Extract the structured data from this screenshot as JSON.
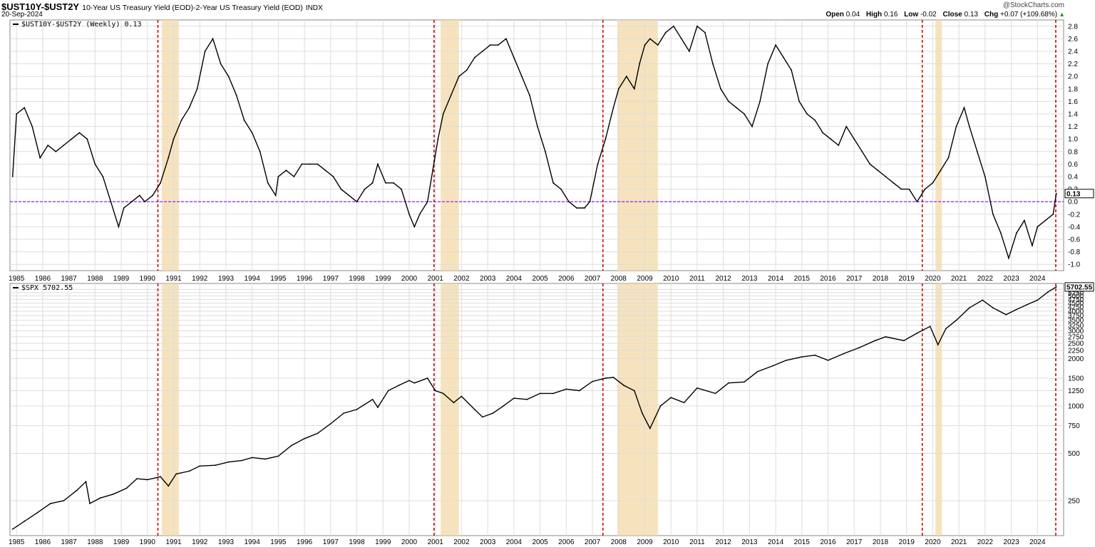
{
  "header": {
    "symbol": "$UST10Y-$UST2Y",
    "description": "10-Year US Treasury Yield (EOD)-2-Year US Treasury Yield (EOD)",
    "exchange": "INDX",
    "date": "20-Sep-2024",
    "brand": "@StockCharts.com",
    "open_label": "Open",
    "open_value": "0.04",
    "high_label": "High",
    "high_value": "0.16",
    "low_label": "Low",
    "low_value": "-0.02",
    "close_label": "Close",
    "close_value": "0.13",
    "chg_label": "Chg",
    "chg_value": "+0.07 (+109.68%)",
    "chg_arrow": "▲"
  },
  "colors": {
    "line": "#000000",
    "recession_shade": "#f3d9a7",
    "inversion_marker": "#cc0000",
    "zero_line": "#9933ff",
    "grid": "#dddddd",
    "up": "#2a9d2a"
  },
  "chart_data": [
    {
      "type": "line",
      "title": "$UST10Y-$UST2Y (Weekly) 0.13",
      "series": [
        {
          "name": "$UST10Y-$UST2Y",
          "x": [
            1984.85,
            1985.0,
            1985.3,
            1985.6,
            1985.9,
            1986.2,
            1986.5,
            1986.8,
            1987.1,
            1987.4,
            1987.7,
            1988.0,
            1988.3,
            1988.6,
            1988.9,
            1989.1,
            1989.4,
            1989.7,
            1989.9,
            1990.2,
            1990.5,
            1990.8,
            1991.0,
            1991.3,
            1991.6,
            1991.9,
            1992.2,
            1992.5,
            1992.8,
            1993.1,
            1993.4,
            1993.7,
            1994.0,
            1994.3,
            1994.6,
            1994.9,
            1995.0,
            1995.3,
            1995.6,
            1995.9,
            1996.2,
            1996.5,
            1996.8,
            1997.1,
            1997.4,
            1997.7,
            1998.0,
            1998.3,
            1998.6,
            1998.8,
            1999.1,
            1999.4,
            1999.7,
            2000.0,
            2000.2,
            2000.4,
            2000.7,
            2000.9,
            2001.1,
            2001.3,
            2001.6,
            2001.9,
            2002.2,
            2002.5,
            2002.8,
            2003.1,
            2003.4,
            2003.7,
            2004.0,
            2004.3,
            2004.6,
            2004.9,
            2005.2,
            2005.5,
            2005.8,
            2006.1,
            2006.4,
            2006.7,
            2006.9,
            2007.2,
            2007.5,
            2007.8,
            2008.0,
            2008.3,
            2008.6,
            2008.8,
            2009.0,
            2009.2,
            2009.5,
            2009.8,
            2010.1,
            2010.4,
            2010.7,
            2011.0,
            2011.3,
            2011.6,
            2011.9,
            2012.2,
            2012.5,
            2012.8,
            2013.1,
            2013.4,
            2013.7,
            2014.0,
            2014.3,
            2014.6,
            2014.9,
            2015.2,
            2015.5,
            2015.8,
            2016.1,
            2016.4,
            2016.7,
            2017.0,
            2017.3,
            2017.6,
            2017.9,
            2018.2,
            2018.5,
            2018.8,
            2019.1,
            2019.4,
            2019.7,
            2020.0,
            2020.3,
            2020.6,
            2020.9,
            2021.2,
            2021.4,
            2021.7,
            2022.0,
            2022.3,
            2022.6,
            2022.9,
            2023.2,
            2023.5,
            2023.8,
            2024.0,
            2024.3,
            2024.6,
            2024.72
          ],
          "values": [
            0.4,
            1.4,
            1.5,
            1.2,
            0.7,
            0.9,
            0.8,
            0.9,
            1.0,
            1.1,
            1.0,
            0.6,
            0.4,
            0.0,
            -0.4,
            -0.1,
            0.0,
            0.1,
            0.0,
            0.1,
            0.3,
            0.7,
            1.0,
            1.3,
            1.5,
            1.8,
            2.4,
            2.6,
            2.2,
            2.0,
            1.7,
            1.3,
            1.1,
            0.8,
            0.3,
            0.1,
            0.4,
            0.5,
            0.4,
            0.6,
            0.6,
            0.6,
            0.5,
            0.4,
            0.2,
            0.1,
            0.0,
            0.2,
            0.3,
            0.6,
            0.3,
            0.3,
            0.2,
            -0.2,
            -0.4,
            -0.2,
            0.0,
            0.5,
            1.0,
            1.4,
            1.7,
            2.0,
            2.1,
            2.3,
            2.4,
            2.5,
            2.5,
            2.6,
            2.3,
            2.0,
            1.7,
            1.2,
            0.8,
            0.3,
            0.2,
            0.0,
            -0.1,
            -0.1,
            0.0,
            0.6,
            1.0,
            1.5,
            1.8,
            2.0,
            1.8,
            2.2,
            2.5,
            2.6,
            2.5,
            2.7,
            2.8,
            2.6,
            2.4,
            2.8,
            2.7,
            2.2,
            1.8,
            1.6,
            1.5,
            1.4,
            1.2,
            1.6,
            2.2,
            2.5,
            2.3,
            2.1,
            1.6,
            1.4,
            1.3,
            1.1,
            1.0,
            0.9,
            1.2,
            1.0,
            0.8,
            0.6,
            0.5,
            0.4,
            0.3,
            0.2,
            0.2,
            0.0,
            0.2,
            0.3,
            0.5,
            0.7,
            1.2,
            1.5,
            1.2,
            0.8,
            0.4,
            -0.2,
            -0.5,
            -0.9,
            -0.5,
            -0.3,
            -0.7,
            -0.4,
            -0.3,
            -0.2,
            0.13
          ]
        }
      ],
      "ylim": [
        -1.1,
        2.9
      ],
      "yticks": [
        "2.8",
        "2.6",
        "2.4",
        "2.2",
        "2.0",
        "1.8",
        "1.6",
        "1.4",
        "1.2",
        "1.0",
        "0.8",
        "0.6",
        "0.4",
        "0.2",
        "0.0",
        "-0.2",
        "-0.4",
        "-0.6",
        "-0.8",
        "-1.0"
      ],
      "xticks": [
        "1985",
        "1986",
        "1987",
        "1988",
        "1989",
        "1990",
        "1991",
        "1992",
        "1993",
        "1994",
        "1995",
        "1996",
        "1997",
        "1998",
        "1999",
        "2000",
        "2001",
        "2002",
        "2003",
        "2004",
        "2005",
        "2006",
        "2007",
        "2008",
        "2009",
        "2010",
        "2011",
        "2012",
        "2013",
        "2014",
        "2015",
        "2016",
        "2017",
        "2018",
        "2019",
        "2020",
        "2021",
        "2022",
        "2023",
        "2024"
      ],
      "xlim": [
        1984.75,
        2025.0
      ],
      "reference_line": 0.0,
      "last_value_label": "0.13",
      "grid": true
    },
    {
      "type": "line",
      "title": "$SPX 5702.55",
      "log_scale": true,
      "series": [
        {
          "name": "$SPX",
          "x": [
            1984.85,
            1985.3,
            1985.8,
            1986.3,
            1986.8,
            1987.3,
            1987.65,
            1987.8,
            1988.2,
            1988.7,
            1989.2,
            1989.6,
            1990.0,
            1990.5,
            1990.8,
            1991.1,
            1991.6,
            1992.0,
            1992.6,
            1993.1,
            1993.6,
            1994.0,
            1994.5,
            1995.0,
            1995.5,
            1996.0,
            1996.5,
            1997.0,
            1997.5,
            1998.0,
            1998.6,
            1998.8,
            1999.2,
            1999.6,
            2000.0,
            2000.2,
            2000.7,
            2001.0,
            2001.3,
            2001.7,
            2002.0,
            2002.5,
            2002.8,
            2003.2,
            2003.6,
            2004.0,
            2004.5,
            2005.0,
            2005.5,
            2006.0,
            2006.5,
            2007.0,
            2007.5,
            2007.8,
            2008.2,
            2008.6,
            2008.9,
            2009.2,
            2009.6,
            2010.0,
            2010.5,
            2011.0,
            2011.7,
            2012.2,
            2012.8,
            2013.3,
            2013.9,
            2014.4,
            2015.0,
            2015.5,
            2016.0,
            2016.6,
            2017.2,
            2017.8,
            2018.2,
            2018.9,
            2019.4,
            2019.9,
            2020.2,
            2020.5,
            2020.9,
            2021.4,
            2021.9,
            2022.3,
            2022.8,
            2023.2,
            2023.6,
            2024.0,
            2024.4,
            2024.72
          ],
          "values": [
            165,
            185,
            210,
            240,
            250,
            290,
            330,
            240,
            260,
            275,
            300,
            345,
            340,
            355,
            310,
            370,
            385,
            415,
            420,
            440,
            450,
            470,
            460,
            480,
            560,
            620,
            670,
            770,
            900,
            950,
            1100,
            980,
            1250,
            1350,
            1450,
            1400,
            1500,
            1250,
            1200,
            1050,
            1150,
            950,
            850,
            900,
            1000,
            1120,
            1100,
            1200,
            1200,
            1280,
            1250,
            1430,
            1500,
            1520,
            1350,
            1250,
            900,
            720,
            1000,
            1130,
            1050,
            1300,
            1200,
            1400,
            1420,
            1650,
            1800,
            1950,
            2050,
            2100,
            1950,
            2150,
            2350,
            2600,
            2750,
            2600,
            2900,
            3200,
            2450,
            3100,
            3500,
            4200,
            4700,
            4200,
            3800,
            4100,
            4400,
            4700,
            5300,
            5702.55
          ]
        }
      ],
      "ylim": [
        150,
        6000
      ],
      "yticks": [
        "250",
        "500",
        "750",
        "1000",
        "1250",
        "1500",
        "2000",
        "2250",
        "2500",
        "2750",
        "3000",
        "3250",
        "3500",
        "3750",
        "4000",
        "4250",
        "4500",
        "4750",
        "5000",
        "5250",
        "5500"
      ],
      "xticks": [
        "1985",
        "1986",
        "1987",
        "1988",
        "1989",
        "1990",
        "1991",
        "1992",
        "1993",
        "1994",
        "1995",
        "1996",
        "1997",
        "1998",
        "1999",
        "2000",
        "2001",
        "2002",
        "2003",
        "2004",
        "2005",
        "2006",
        "2007",
        "2008",
        "2009",
        "2010",
        "2011",
        "2012",
        "2013",
        "2014",
        "2015",
        "2016",
        "2017",
        "2018",
        "2019",
        "2020",
        "2021",
        "2022",
        "2023",
        "2024"
      ],
      "xlim": [
        1984.75,
        2025.0
      ],
      "last_value_label": "5702.55",
      "grid": true
    }
  ],
  "annotations": {
    "recession_shading": [
      [
        1990.55,
        1991.2
      ],
      [
        2001.2,
        2001.9
      ],
      [
        2007.95,
        2009.5
      ],
      [
        2020.1,
        2020.35
      ]
    ],
    "inversion_markers": [
      1990.4,
      2000.95,
      2007.4,
      2019.6,
      2024.7
    ]
  }
}
